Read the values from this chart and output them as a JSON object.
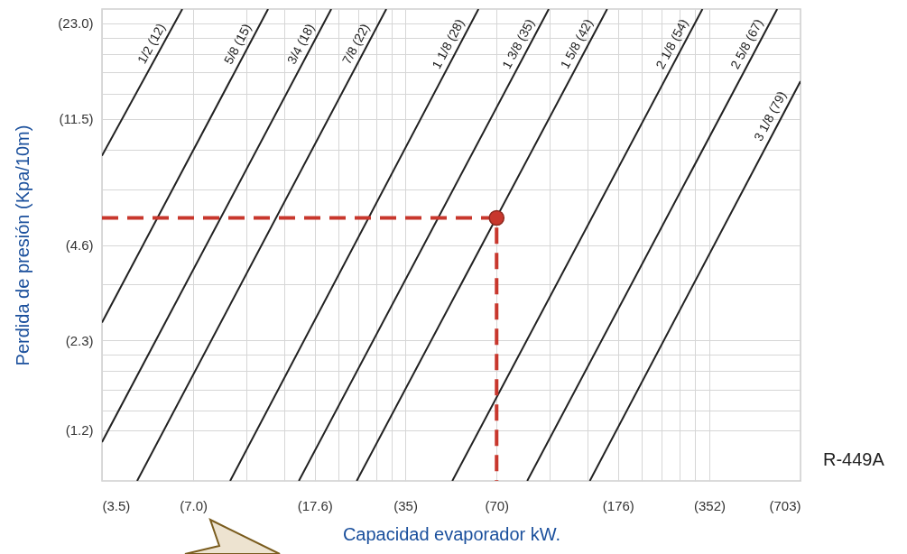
{
  "chart_data": {
    "type": "line",
    "xlabel": "Capacidad evaporador kW.",
    "ylabel": "Perdida de presión (Kpa/10m)",
    "log": "xy",
    "grid": true,
    "xlim": [
      3.5,
      703
    ],
    "ylim": [
      0.83,
      25.5
    ],
    "xticks": [
      {
        "value": 3.5,
        "label": "(3.5)"
      },
      {
        "value": 7,
        "label": "(7.0)"
      },
      {
        "value": 10.5,
        "label": null
      },
      {
        "value": 14,
        "label": null
      },
      {
        "value": 17.6,
        "label": "(17.6)"
      },
      {
        "value": 21,
        "label": null
      },
      {
        "value": 24.5,
        "label": null
      },
      {
        "value": 28,
        "label": null
      },
      {
        "value": 31.5,
        "label": null
      },
      {
        "value": 35,
        "label": "(35)"
      },
      {
        "value": 70,
        "label": "(70)"
      },
      {
        "value": 105,
        "label": null
      },
      {
        "value": 140,
        "label": null
      },
      {
        "value": 176,
        "label": "(176)"
      },
      {
        "value": 210,
        "label": null
      },
      {
        "value": 245,
        "label": null
      },
      {
        "value": 280,
        "label": null
      },
      {
        "value": 315,
        "label": null
      },
      {
        "value": 352,
        "label": "(352)"
      },
      {
        "value": 703,
        "label": "(703)"
      }
    ],
    "yticks": [
      {
        "value": 1.2,
        "label": "(1.2)"
      },
      {
        "value": 1.38,
        "label": null
      },
      {
        "value": 1.61,
        "label": null
      },
      {
        "value": 1.84,
        "label": null
      },
      {
        "value": 2.07,
        "label": null
      },
      {
        "value": 2.3,
        "label": "(2.3)"
      },
      {
        "value": 3.45,
        "label": null
      },
      {
        "value": 4.6,
        "label": "(4.6)"
      },
      {
        "value": 6.9,
        "label": null
      },
      {
        "value": 9.2,
        "label": null
      },
      {
        "value": 11.5,
        "label": "(11.5)"
      },
      {
        "value": 13.8,
        "label": null
      },
      {
        "value": 16.1,
        "label": null
      },
      {
        "value": 18.4,
        "label": null
      },
      {
        "value": 20.7,
        "label": null
      },
      {
        "value": 23,
        "label": "(23.0)"
      }
    ],
    "series": [
      {
        "name": "1/2 (12)",
        "color": "#222222",
        "x": [
          3.5,
          6.44
        ],
        "values": [
          8.79,
          25.5
        ]
      },
      {
        "name": "5/8 (15)",
        "color": "#222222",
        "x": [
          3.5,
          12.35
        ],
        "values": [
          2.62,
          25.5
        ]
      },
      {
        "name": "3/4 (18)",
        "color": "#222222",
        "x": [
          3.5,
          19.95
        ],
        "values": [
          1.1,
          25.5
        ]
      },
      {
        "name": "7/8 (22)",
        "color": "#222222",
        "x": [
          4.57,
          30.3
        ],
        "values": [
          0.83,
          25.5
        ]
      },
      {
        "name": "1 1/8 (28)",
        "color": "#222222",
        "x": [
          9.26,
          61
        ],
        "values": [
          0.83,
          25.5
        ]
      },
      {
        "name": "1 3/8 (35)",
        "color": "#222222",
        "x": [
          15.6,
          104
        ],
        "values": [
          0.83,
          25.5
        ]
      },
      {
        "name": "1 5/8 (42)",
        "color": "#222222",
        "x": [
          24.2,
          162
        ],
        "values": [
          0.83,
          25.5
        ]
      },
      {
        "name": "2 1/8 (54)",
        "color": "#222222",
        "x": [
          50,
          334
        ],
        "values": [
          0.83,
          25.5
        ]
      },
      {
        "name": "2 5/8 (67)",
        "color": "#222222",
        "x": [
          88.3,
          589
        ],
        "values": [
          0.83,
          25.5
        ]
      },
      {
        "name": "3 1/8 (79)",
        "color": "#222222",
        "x": [
          142,
          703
        ],
        "values": [
          0.83,
          15.1
        ]
      },
      {
        "type": "line",
        "line_style": "dashed",
        "color": "#c8372d",
        "x": [
          3.5,
          70,
          70
        ],
        "values": [
          5.6,
          5.6,
          0.83
        ]
      },
      {
        "type": "scatter",
        "marker": "circle",
        "color": "#c8372d",
        "x": [
          70
        ],
        "values": [
          5.6
        ]
      }
    ],
    "annotations": [
      "R-449A"
    ]
  }
}
